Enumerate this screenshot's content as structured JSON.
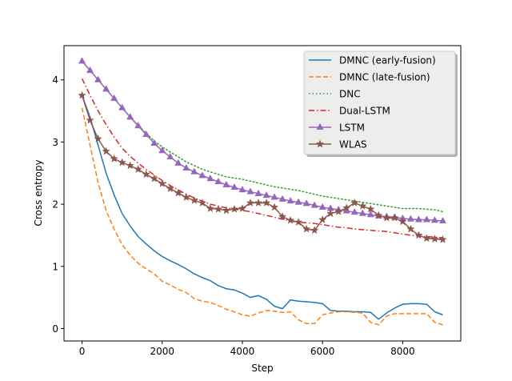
{
  "chart_data": {
    "type": "line",
    "title": "",
    "xlabel": "Step",
    "ylabel": "Cross entropy",
    "xlim": [
      -450,
      9450
    ],
    "ylim": [
      -0.2,
      4.55
    ],
    "xticks": [
      0,
      2000,
      4000,
      6000,
      8000
    ],
    "yticks": [
      0,
      1,
      2,
      3,
      4
    ],
    "legend_position": "top-right",
    "grid": false,
    "series": [
      {
        "name": "DMNC (early-fusion)",
        "color": "#1f77b4",
        "style": "solid",
        "marker": "none",
        "x": [
          0,
          200,
          400,
          600,
          800,
          1000,
          1200,
          1400,
          1600,
          1800,
          2000,
          2200,
          2400,
          2600,
          2800,
          3000,
          3200,
          3400,
          3600,
          3800,
          4000,
          4200,
          4400,
          4600,
          4800,
          5000,
          5200,
          5400,
          5600,
          5800,
          6000,
          6200,
          6400,
          6600,
          6800,
          7000,
          7200,
          7400,
          7600,
          7800,
          8000,
          8200,
          8400,
          8600,
          8800,
          9000
        ],
        "y": [
          3.75,
          3.4,
          2.95,
          2.5,
          2.15,
          1.85,
          1.65,
          1.48,
          1.36,
          1.25,
          1.16,
          1.09,
          1.03,
          0.96,
          0.88,
          0.82,
          0.77,
          0.69,
          0.64,
          0.62,
          0.57,
          0.5,
          0.53,
          0.47,
          0.36,
          0.32,
          0.46,
          0.44,
          0.43,
          0.42,
          0.4,
          0.29,
          0.28,
          0.28,
          0.27,
          0.27,
          0.26,
          0.15,
          0.25,
          0.33,
          0.39,
          0.4,
          0.4,
          0.39,
          0.27,
          0.22
        ]
      },
      {
        "name": "DMNC (late-fusion)",
        "color": "#ff7f0e",
        "style": "dashed",
        "marker": "none",
        "x": [
          0,
          200,
          400,
          600,
          800,
          1000,
          1200,
          1400,
          1600,
          1800,
          2000,
          2200,
          2400,
          2600,
          2800,
          3000,
          3200,
          3400,
          3600,
          3800,
          4000,
          4200,
          4400,
          4600,
          4800,
          5000,
          5200,
          5400,
          5600,
          5800,
          6000,
          6200,
          6400,
          6600,
          6800,
          7000,
          7200,
          7400,
          7600,
          7800,
          8000,
          8200,
          8400,
          8600,
          8800,
          9000
        ],
        "y": [
          3.55,
          2.95,
          2.35,
          1.9,
          1.6,
          1.35,
          1.18,
          1.05,
          0.96,
          0.88,
          0.76,
          0.7,
          0.63,
          0.58,
          0.48,
          0.44,
          0.42,
          0.37,
          0.31,
          0.27,
          0.22,
          0.2,
          0.25,
          0.29,
          0.28,
          0.26,
          0.27,
          0.14,
          0.08,
          0.08,
          0.22,
          0.25,
          0.27,
          0.27,
          0.26,
          0.25,
          0.1,
          0.06,
          0.2,
          0.24,
          0.24,
          0.24,
          0.24,
          0.24,
          0.1,
          0.06
        ]
      },
      {
        "name": "DNC",
        "color": "#2ca02c",
        "style": "dotted",
        "marker": "none",
        "x": [
          0,
          200,
          400,
          600,
          800,
          1000,
          1200,
          1400,
          1600,
          1800,
          2000,
          2200,
          2400,
          2600,
          2800,
          3000,
          3200,
          3400,
          3600,
          3800,
          4000,
          4200,
          4400,
          4600,
          4800,
          5000,
          5200,
          5400,
          5600,
          5800,
          6000,
          6200,
          6400,
          6600,
          6800,
          7000,
          7200,
          7400,
          7600,
          7800,
          8000,
          8200,
          8400,
          8600,
          8800,
          9000
        ],
        "y": [
          4.3,
          4.15,
          4.0,
          3.85,
          3.7,
          3.55,
          3.4,
          3.27,
          3.14,
          3.02,
          2.92,
          2.84,
          2.76,
          2.68,
          2.62,
          2.56,
          2.52,
          2.48,
          2.44,
          2.42,
          2.4,
          2.37,
          2.34,
          2.31,
          2.28,
          2.26,
          2.24,
          2.22,
          2.19,
          2.16,
          2.13,
          2.11,
          2.09,
          2.07,
          2.05,
          2.03,
          2.01,
          1.99,
          1.97,
          1.95,
          1.93,
          1.93,
          1.93,
          1.92,
          1.91,
          1.88
        ]
      },
      {
        "name": "Dual-LSTM",
        "color": "#d62728",
        "style": "dashdot",
        "marker": "none",
        "x": [
          0,
          200,
          400,
          600,
          800,
          1000,
          1200,
          1400,
          1600,
          1800,
          2000,
          2200,
          2400,
          2600,
          2800,
          3000,
          3200,
          3400,
          3600,
          3800,
          4000,
          4200,
          4400,
          4600,
          4800,
          5000,
          5200,
          5400,
          5600,
          5800,
          6000,
          6200,
          6400,
          6600,
          6800,
          7000,
          7200,
          7400,
          7600,
          7800,
          8000,
          8200,
          8400,
          8600,
          8800,
          9000
        ],
        "y": [
          4.02,
          3.75,
          3.5,
          3.28,
          3.08,
          2.9,
          2.77,
          2.66,
          2.56,
          2.47,
          2.38,
          2.3,
          2.23,
          2.16,
          2.1,
          2.05,
          2.0,
          1.97,
          1.94,
          1.92,
          1.9,
          1.88,
          1.85,
          1.82,
          1.79,
          1.76,
          1.73,
          1.71,
          1.7,
          1.69,
          1.67,
          1.65,
          1.63,
          1.62,
          1.6,
          1.59,
          1.58,
          1.57,
          1.56,
          1.54,
          1.52,
          1.5,
          1.49,
          1.48,
          1.47,
          1.46
        ]
      },
      {
        "name": "LSTM",
        "color": "#9467bd",
        "style": "solid",
        "marker": "triangle",
        "x": [
          0,
          200,
          400,
          600,
          800,
          1000,
          1200,
          1400,
          1600,
          1800,
          2000,
          2200,
          2400,
          2600,
          2800,
          3000,
          3200,
          3400,
          3600,
          3800,
          4000,
          4200,
          4400,
          4600,
          4800,
          5000,
          5200,
          5400,
          5600,
          5800,
          6000,
          6200,
          6400,
          6600,
          6800,
          7000,
          7200,
          7400,
          7600,
          7800,
          8000,
          8200,
          8400,
          8600,
          8800,
          9000
        ],
        "y": [
          4.3,
          4.15,
          4.0,
          3.85,
          3.7,
          3.55,
          3.4,
          3.26,
          3.12,
          2.98,
          2.86,
          2.76,
          2.66,
          2.58,
          2.52,
          2.46,
          2.41,
          2.36,
          2.31,
          2.27,
          2.23,
          2.2,
          2.17,
          2.14,
          2.11,
          2.08,
          2.05,
          2.03,
          2.01,
          1.98,
          1.95,
          1.93,
          1.91,
          1.89,
          1.87,
          1.85,
          1.83,
          1.81,
          1.8,
          1.79,
          1.77,
          1.76,
          1.75,
          1.75,
          1.74,
          1.73
        ]
      },
      {
        "name": "WLAS",
        "color": "#8c564b",
        "style": "solid",
        "marker": "star",
        "x": [
          0,
          200,
          400,
          600,
          800,
          1000,
          1200,
          1400,
          1600,
          1800,
          2000,
          2200,
          2400,
          2600,
          2800,
          3000,
          3200,
          3400,
          3600,
          3800,
          4000,
          4200,
          4400,
          4600,
          4800,
          5000,
          5200,
          5400,
          5600,
          5800,
          6000,
          6200,
          6400,
          6600,
          6800,
          7000,
          7200,
          7400,
          7600,
          7800,
          8000,
          8200,
          8400,
          8600,
          8800,
          9000
        ],
        "y": [
          3.75,
          3.35,
          3.05,
          2.85,
          2.73,
          2.67,
          2.62,
          2.56,
          2.48,
          2.41,
          2.33,
          2.25,
          2.18,
          2.11,
          2.06,
          2.02,
          1.93,
          1.92,
          1.9,
          1.92,
          1.93,
          2.02,
          2.02,
          2.02,
          1.95,
          1.8,
          1.74,
          1.71,
          1.6,
          1.58,
          1.75,
          1.85,
          1.88,
          1.94,
          2.02,
          1.97,
          1.92,
          1.82,
          1.78,
          1.78,
          1.72,
          1.6,
          1.5,
          1.45,
          1.44,
          1.43
        ]
      }
    ]
  }
}
